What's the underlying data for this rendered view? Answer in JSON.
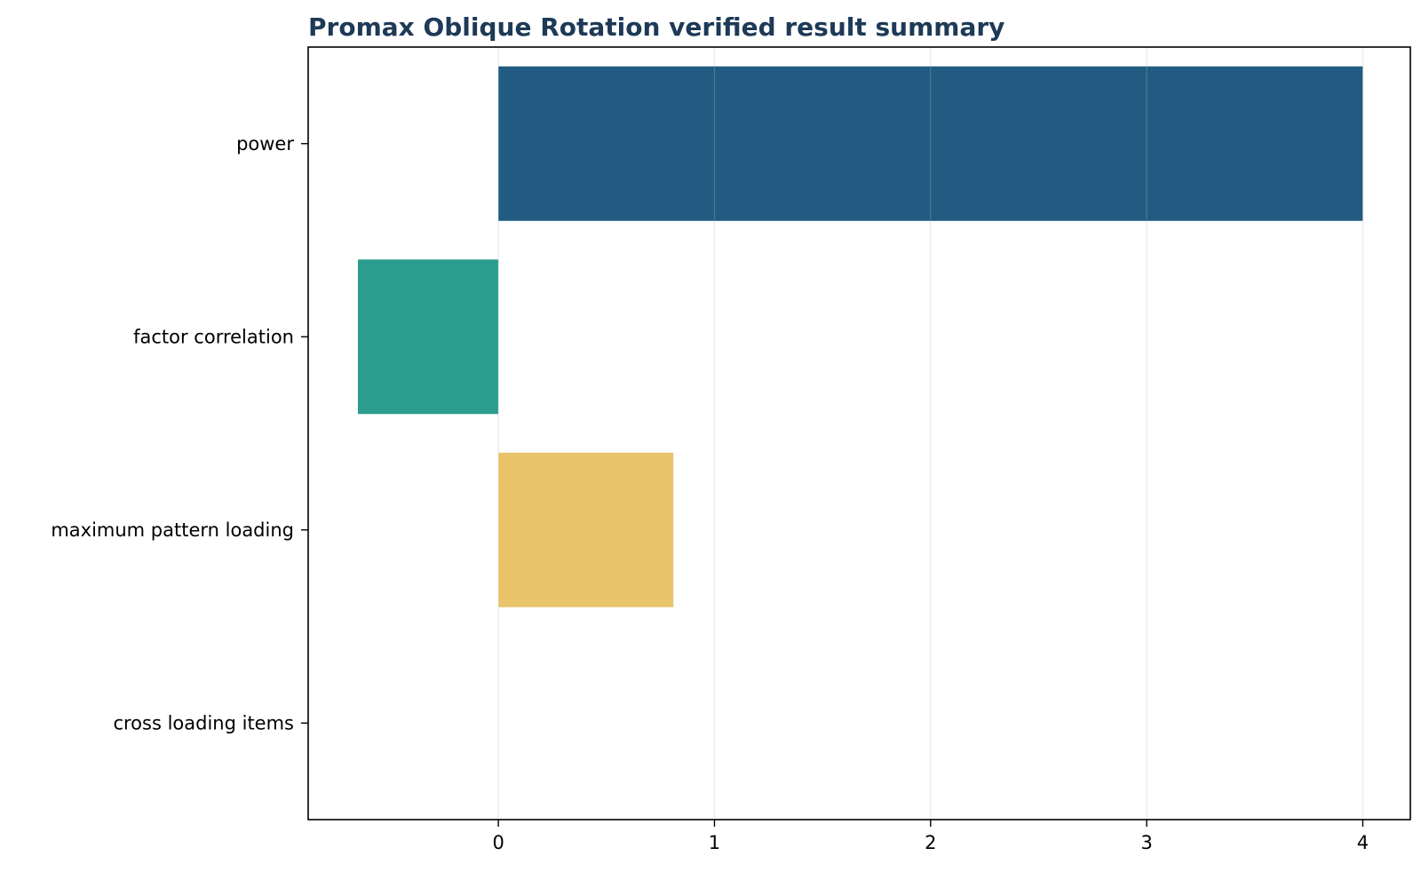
{
  "chart_data": {
    "type": "bar",
    "orientation": "horizontal",
    "title": "Promax Oblique Rotation verified result summary",
    "xlabel": "",
    "ylabel": "",
    "categories": [
      "power",
      "factor correlation",
      "maximum pattern loading",
      "cross loading items"
    ],
    "values": [
      4.0,
      -0.65,
      0.81,
      0.0
    ],
    "colors": [
      "#215b81",
      "#2a9d8f",
      "#e9c46a",
      "#e76f51"
    ],
    "xlim": [
      -0.88,
      4.22
    ],
    "xticks": [
      0,
      1,
      2,
      3,
      4
    ],
    "xtick_labels": [
      "0",
      "1",
      "2",
      "3",
      "4"
    ],
    "grid": "vertical",
    "legend": "none",
    "title_color": "#1d3a57"
  }
}
